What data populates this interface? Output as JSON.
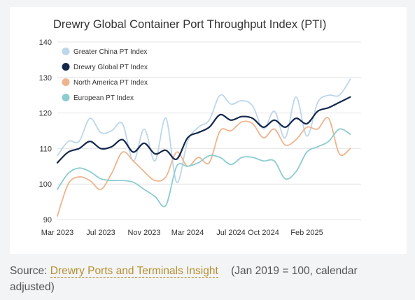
{
  "chart_data": {
    "type": "line",
    "title": "Drewry Global Container Port Throughput Index (PTI)",
    "xlabel": "",
    "ylabel": "",
    "ylim": [
      90,
      140
    ],
    "yticks": [
      90,
      100,
      110,
      120,
      130,
      140
    ],
    "x_start": "2023-03",
    "x_end": "2025-07",
    "x_tick_labels": [
      "Mar 2023",
      "Jul 2023",
      "Nov 2023",
      "Mar 2024",
      "Jul 2024",
      "Oct 2024",
      "Feb 2025"
    ],
    "x_tick_months": [
      "2023-03",
      "2023-07",
      "2023-11",
      "2024-03",
      "2024-07",
      "2024-10",
      "2025-02"
    ],
    "grid": true,
    "legend": "top-left",
    "series": [
      {
        "name": "Greater China PT Index",
        "color": "#bcd7eb",
        "points": [
          [
            "2023-03",
            108
          ],
          [
            "2023-04",
            112
          ],
          [
            "2023-05",
            112
          ],
          [
            "2023-06",
            118.5
          ],
          [
            "2023-07",
            114.5
          ],
          [
            "2023-08",
            115
          ],
          [
            "2023-09",
            117
          ],
          [
            "2023-10",
            106.5
          ],
          [
            "2023-11",
            115.5
          ],
          [
            "2023-12",
            106.5
          ],
          [
            "2024-01",
            118.5
          ],
          [
            "2024-02",
            100.5
          ],
          [
            "2024-03",
            112
          ],
          [
            "2024-04",
            116
          ],
          [
            "2024-05",
            118
          ],
          [
            "2024-06",
            125
          ],
          [
            "2024-07",
            122.5
          ],
          [
            "2024-08",
            123.5
          ],
          [
            "2024-09",
            122
          ],
          [
            "2024-10",
            115.5
          ],
          [
            "2024-11",
            120.5
          ],
          [
            "2024-12",
            113
          ],
          [
            "2025-01",
            124.5
          ],
          [
            "2025-02",
            113.5
          ],
          [
            "2025-03",
            123
          ],
          [
            "2025-04",
            125
          ],
          [
            "2025-05",
            125
          ],
          [
            "2025-06",
            129.5
          ]
        ]
      },
      {
        "name": "Drewry Global PT Index",
        "color": "#14284b",
        "points": [
          [
            "2023-03",
            106
          ],
          [
            "2023-04",
            109
          ],
          [
            "2023-05",
            110
          ],
          [
            "2023-06",
            112
          ],
          [
            "2023-07",
            110
          ],
          [
            "2023-08",
            110.5
          ],
          [
            "2023-09",
            112.5
          ],
          [
            "2023-10",
            109
          ],
          [
            "2023-11",
            111.5
          ],
          [
            "2023-12",
            108.5
          ],
          [
            "2024-01",
            109.5
          ],
          [
            "2024-02",
            107
          ],
          [
            "2024-03",
            113
          ],
          [
            "2024-04",
            114.5
          ],
          [
            "2024-05",
            116
          ],
          [
            "2024-06",
            119.5
          ],
          [
            "2024-07",
            118
          ],
          [
            "2024-08",
            119
          ],
          [
            "2024-09",
            118.5
          ],
          [
            "2024-10",
            116
          ],
          [
            "2024-11",
            118
          ],
          [
            "2024-12",
            116
          ],
          [
            "2025-01",
            118.5
          ],
          [
            "2025-02",
            117
          ],
          [
            "2025-03",
            120.5
          ],
          [
            "2025-04",
            121.5
          ],
          [
            "2025-05",
            123
          ],
          [
            "2025-06",
            124.5
          ]
        ]
      },
      {
        "name": "North America PT Index",
        "color": "#efb48e",
        "points": [
          [
            "2023-03",
            91
          ],
          [
            "2023-04",
            100
          ],
          [
            "2023-05",
            102
          ],
          [
            "2023-06",
            101
          ],
          [
            "2023-07",
            98.5
          ],
          [
            "2023-08",
            103
          ],
          [
            "2023-09",
            109
          ],
          [
            "2023-10",
            106.5
          ],
          [
            "2023-11",
            103.5
          ],
          [
            "2023-12",
            101
          ],
          [
            "2024-01",
            102
          ],
          [
            "2024-02",
            109
          ],
          [
            "2024-03",
            105
          ],
          [
            "2024-04",
            107.5
          ],
          [
            "2024-05",
            106
          ],
          [
            "2024-06",
            115
          ],
          [
            "2024-07",
            115
          ],
          [
            "2024-08",
            117.5
          ],
          [
            "2024-09",
            117
          ],
          [
            "2024-10",
            113
          ],
          [
            "2024-11",
            115.5
          ],
          [
            "2024-12",
            111
          ],
          [
            "2025-01",
            112.5
          ],
          [
            "2025-02",
            116
          ],
          [
            "2025-03",
            115.5
          ],
          [
            "2025-04",
            118.5
          ],
          [
            "2025-05",
            108.5
          ],
          [
            "2025-06",
            110
          ]
        ]
      },
      {
        "name": "European PT Index",
        "color": "#8dccd0",
        "points": [
          [
            "2023-03",
            98.5
          ],
          [
            "2023-04",
            103
          ],
          [
            "2023-05",
            104.5
          ],
          [
            "2023-06",
            103.5
          ],
          [
            "2023-07",
            101.5
          ],
          [
            "2023-08",
            101
          ],
          [
            "2023-09",
            101
          ],
          [
            "2023-10",
            100.5
          ],
          [
            "2023-11",
            98.5
          ],
          [
            "2023-12",
            96.5
          ],
          [
            "2024-01",
            94
          ],
          [
            "2024-02",
            105
          ],
          [
            "2024-03",
            105
          ],
          [
            "2024-04",
            106
          ],
          [
            "2024-05",
            108
          ],
          [
            "2024-06",
            107.5
          ],
          [
            "2024-07",
            105.5
          ],
          [
            "2024-08",
            107.5
          ],
          [
            "2024-09",
            107.5
          ],
          [
            "2024-10",
            106.5
          ],
          [
            "2024-11",
            106.5
          ],
          [
            "2024-12",
            101.5
          ],
          [
            "2025-01",
            103.5
          ],
          [
            "2025-02",
            109
          ],
          [
            "2025-03",
            110.5
          ],
          [
            "2025-04",
            112
          ],
          [
            "2025-05",
            115.5
          ],
          [
            "2025-06",
            114
          ]
        ]
      }
    ]
  },
  "source": {
    "prefix": "Source:",
    "link_text": "Drewry Ports and Terminals Insight",
    "note": "(Jan 2019 = 100, calendar adjusted)"
  }
}
